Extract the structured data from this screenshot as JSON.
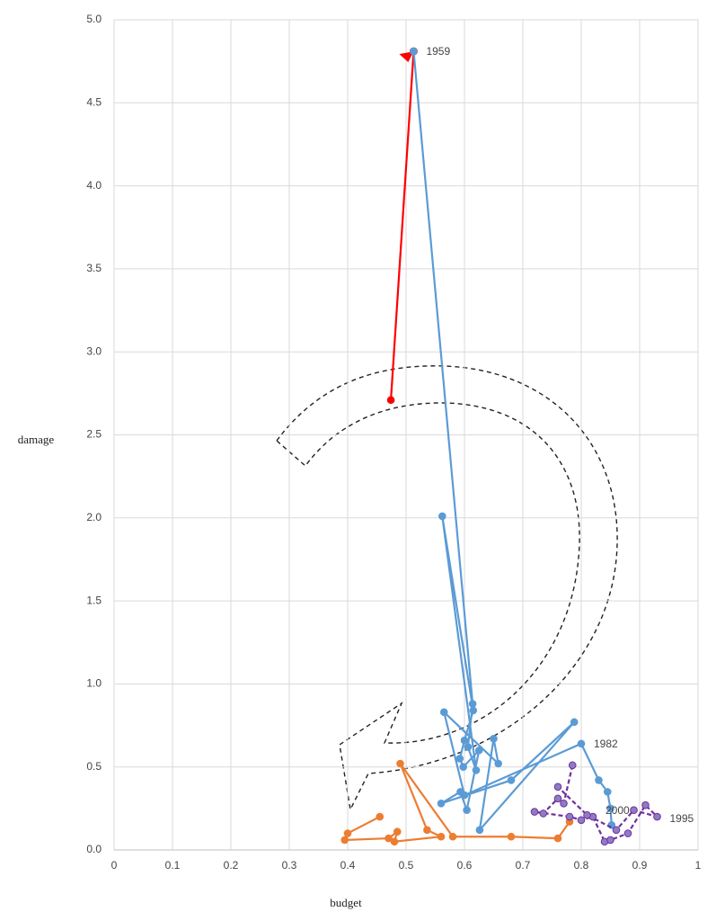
{
  "chart_data": {
    "type": "scatter",
    "x_label": "budget",
    "y_label": "damage",
    "xlim": [
      0,
      1
    ],
    "xticks": [
      {
        "value": 0,
        "label": "0"
      },
      0.1,
      0.2,
      0.3,
      0.4,
      0.5,
      0.6,
      0.7,
      0.8,
      0.9,
      {
        "value": 1,
        "label": "1"
      }
    ],
    "ylim": [
      0,
      5
    ],
    "yticks": [
      {
        "value": 0,
        "label": "0.0"
      },
      0.5,
      {
        "value": 1,
        "label": "1.0"
      },
      1.5,
      {
        "value": 2,
        "label": "2.0"
      },
      2.5,
      {
        "value": 3,
        "label": "3.0"
      },
      3.5,
      {
        "value": 4,
        "label": "4.0"
      },
      4.5,
      {
        "value": 5,
        "label": "5.0"
      }
    ],
    "grid": true,
    "series": [
      {
        "color": "#ff0000",
        "dashed": false,
        "arrow": true,
        "x": [
          0.474,
          0.513
        ],
        "values": [
          2.71,
          4.81
        ]
      },
      {
        "color": "#5b9bd5",
        "dashed": false,
        "arrow": false,
        "x": [
          0.513,
          0.614,
          0.606,
          0.62,
          0.562,
          0.615,
          0.6,
          0.592,
          0.598,
          0.625,
          0.604,
          0.593,
          0.56,
          0.68,
          0.788,
          0.626,
          0.65,
          0.658,
          0.565,
          0.6,
          0.8,
          0.83,
          0.845,
          0.85,
          0.852
        ],
        "values": [
          4.81,
          0.88,
          0.62,
          0.48,
          2.01,
          0.84,
          0.66,
          0.55,
          0.5,
          0.6,
          0.24,
          0.35,
          0.28,
          0.42,
          0.77,
          0.12,
          0.67,
          0.52,
          0.83,
          0.33,
          0.64,
          0.42,
          0.35,
          0.25,
          0.15
        ]
      },
      {
        "color": "#ed7d31",
        "dashed": false,
        "arrow": false,
        "x": [
          0.455,
          0.4,
          0.395,
          0.47,
          0.485,
          0.48,
          0.56,
          0.536,
          0.49,
          0.58,
          0.68,
          0.76,
          0.78
        ],
        "values": [
          0.2,
          0.1,
          0.06,
          0.07,
          0.11,
          0.05,
          0.08,
          0.12,
          0.52,
          0.08,
          0.08,
          0.07,
          0.17
        ]
      },
      {
        "color": "#7030a0",
        "dashed": true,
        "arrow": false,
        "x": [
          0.785,
          0.77,
          0.76,
          0.735,
          0.72,
          0.78,
          0.8,
          0.82,
          0.84,
          0.85,
          0.88,
          0.91,
          0.93,
          0.89,
          0.86,
          0.81,
          0.76
        ],
        "values": [
          0.51,
          0.28,
          0.31,
          0.22,
          0.23,
          0.2,
          0.18,
          0.2,
          0.05,
          0.06,
          0.1,
          0.27,
          0.2,
          0.24,
          0.12,
          0.21,
          0.38
        ]
      }
    ],
    "annotations": [
      {
        "text": "1959",
        "x": 0.513,
        "y": 4.81
      },
      {
        "text": "1982",
        "x": 0.8,
        "y": 0.64
      },
      {
        "text": "2000",
        "x": 0.82,
        "y": 0.24
      },
      {
        "text": "1995",
        "x": 0.93,
        "y": 0.19
      }
    ]
  }
}
